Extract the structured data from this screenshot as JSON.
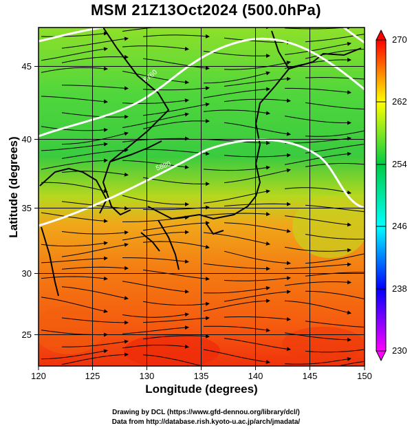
{
  "title": "MSM 21Z13Oct2024 (500.0hPa)",
  "x_axis": {
    "label": "Longitude (degrees)",
    "ticks": [
      "120",
      "125",
      "130",
      "135",
      "140",
      "145",
      "150"
    ],
    "range": [
      120,
      150
    ]
  },
  "y_axis": {
    "label": "Latitude  (degrees)",
    "ticks": [
      "25",
      "30",
      "35",
      "40",
      "45"
    ],
    "range": [
      22.4,
      47.6
    ]
  },
  "colorbar": {
    "ticks": [
      "230",
      "238",
      "246",
      "254",
      "262",
      "270"
    ],
    "range": [
      230,
      270
    ],
    "colors": [
      "#ff00ff",
      "#0000ff",
      "#00ffff",
      "#00cc44",
      "#ffff00",
      "#ff0000"
    ]
  },
  "contour_labels": [
    "5760",
    "5880"
  ],
  "credits": {
    "line1": "Drawing by DCL (https://www.gfd-dennou.org/library/dcl/)",
    "line2": "Data from http://database.rish.kyoto-u.ac.jp/arch/jmadata/"
  }
}
